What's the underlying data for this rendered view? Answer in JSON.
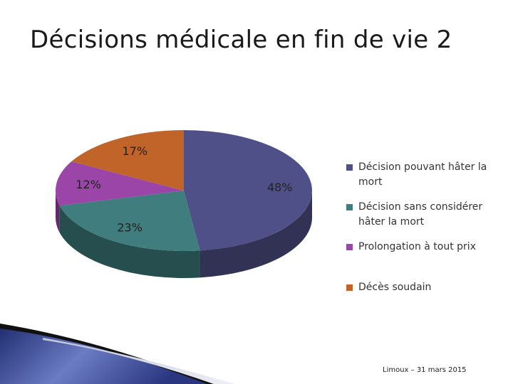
{
  "slide": {
    "title": "Décisions médicale en fin de vie 2",
    "footer": "Limoux – 31 mars 2015"
  },
  "chart_data": {
    "type": "pie",
    "style": "3d",
    "legend_position": "right",
    "categories": [
      "Décision pouvant hâter la mort",
      "Décision sans considérer hâter la mort",
      "Prolongation à tout prix",
      "Décès soudain"
    ],
    "values": [
      48,
      23,
      12,
      17
    ],
    "labels": [
      "48%",
      "23%",
      "12%",
      "17%"
    ],
    "colors": [
      "#4f5088",
      "#3f7d7e",
      "#9b45a8",
      "#c0642a"
    ]
  }
}
